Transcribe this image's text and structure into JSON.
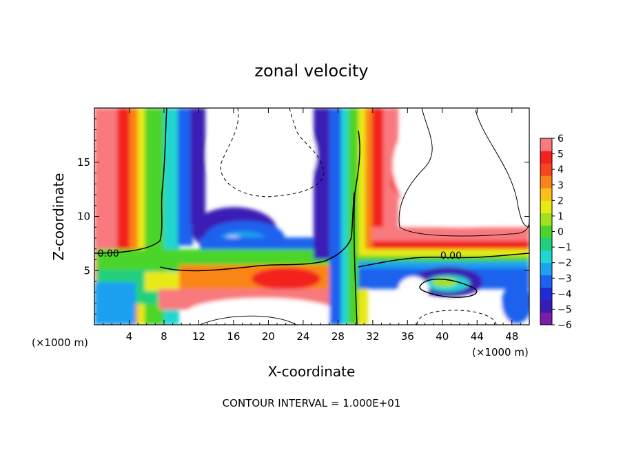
{
  "chart_data": {
    "type": "heatmap",
    "title": "zonal velocity",
    "xlabel": "X-coordinate",
    "ylabel": "Z-coordinate",
    "x_unit_left": "(×1000 m)",
    "x_unit_right": "(×1000 m)",
    "footer": "CONTOUR INTERVAL = 1.000E+01",
    "xlim": [
      0,
      50
    ],
    "ylim": [
      0,
      20
    ],
    "x_ticks": [
      4,
      8,
      12,
      16,
      20,
      24,
      28,
      32,
      36,
      40,
      44,
      48
    ],
    "x_tick_labels": [
      "4",
      "8",
      "12",
      "16",
      "20",
      "24",
      "28",
      "32",
      "36",
      "40",
      "44",
      "48"
    ],
    "y_ticks": [
      5,
      10,
      15
    ],
    "y_tick_labels": [
      "5",
      "10",
      "15"
    ],
    "colorbar": {
      "min": -6,
      "max": 6,
      "ticks": [
        6,
        5,
        4,
        3,
        2,
        1,
        0,
        -1,
        -2,
        -3,
        -4,
        -5,
        -6
      ],
      "tick_labels": [
        "6",
        "5",
        "4",
        "3",
        "2",
        "1",
        "0",
        "−1",
        "−2",
        "−3",
        "−4",
        "−5",
        "−6"
      ],
      "colors": [
        "#7a1ea8",
        "#3a1ab4",
        "#1f2bd6",
        "#1c62ee",
        "#1fa0f0",
        "#20d6d0",
        "#21d07c",
        "#4bd42a",
        "#a0e01c",
        "#e8ea14",
        "#fcc018",
        "#fb8418",
        "#f7441e",
        "#f3221e",
        "#f8797e"
      ]
    },
    "contour_labels": [
      {
        "text": "0.00",
        "x": 1.6,
        "z": 6.6
      },
      {
        "text": "0.00",
        "x": 41.0,
        "z": 6.4
      }
    ]
  }
}
